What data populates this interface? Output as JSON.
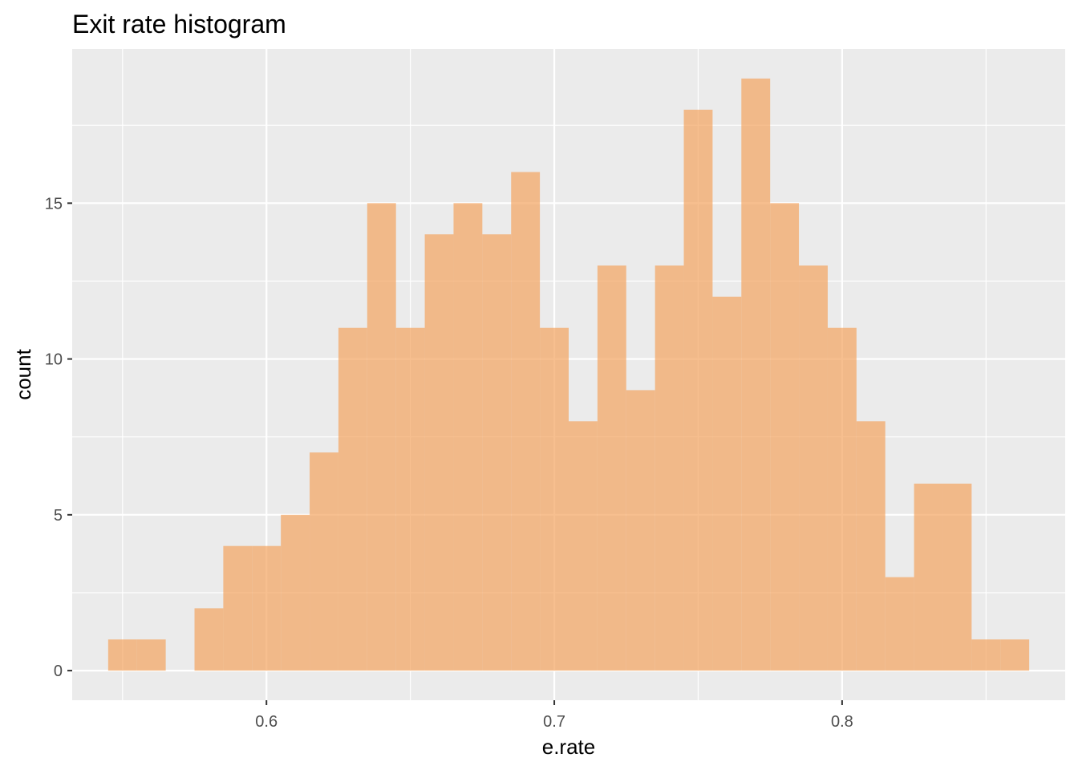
{
  "chart_data": {
    "type": "bar",
    "subtype": "histogram",
    "title": "Exit rate histogram",
    "xlabel": "e.rate",
    "ylabel": "count",
    "xlim": [
      0.5325,
      0.8775
    ],
    "ylim": [
      -0.95,
      19.95
    ],
    "x_ticks": [
      {
        "value": 0.6,
        "label": "0.6"
      },
      {
        "value": 0.7,
        "label": "0.7"
      },
      {
        "value": 0.8,
        "label": "0.8"
      }
    ],
    "x_minor_ticks": [
      0.55,
      0.65,
      0.75,
      0.85
    ],
    "y_ticks": [
      {
        "value": 0,
        "label": "0"
      },
      {
        "value": 5,
        "label": "5"
      },
      {
        "value": 10,
        "label": "10"
      },
      {
        "value": 15,
        "label": "15"
      }
    ],
    "y_minor_ticks": [
      2.5,
      7.5,
      12.5,
      17.5
    ],
    "bin_width": 0.01,
    "bins": [
      {
        "x": 0.55,
        "count": 1
      },
      {
        "x": 0.56,
        "count": 1
      },
      {
        "x": 0.57,
        "count": 0
      },
      {
        "x": 0.58,
        "count": 2
      },
      {
        "x": 0.59,
        "count": 4
      },
      {
        "x": 0.6,
        "count": 4
      },
      {
        "x": 0.61,
        "count": 5
      },
      {
        "x": 0.62,
        "count": 7
      },
      {
        "x": 0.63,
        "count": 11
      },
      {
        "x": 0.64,
        "count": 15
      },
      {
        "x": 0.65,
        "count": 11
      },
      {
        "x": 0.66,
        "count": 14
      },
      {
        "x": 0.67,
        "count": 15
      },
      {
        "x": 0.68,
        "count": 14
      },
      {
        "x": 0.69,
        "count": 16
      },
      {
        "x": 0.7,
        "count": 11
      },
      {
        "x": 0.71,
        "count": 8
      },
      {
        "x": 0.72,
        "count": 13
      },
      {
        "x": 0.73,
        "count": 9
      },
      {
        "x": 0.74,
        "count": 13
      },
      {
        "x": 0.75,
        "count": 18
      },
      {
        "x": 0.76,
        "count": 12
      },
      {
        "x": 0.77,
        "count": 19
      },
      {
        "x": 0.78,
        "count": 15
      },
      {
        "x": 0.79,
        "count": 13
      },
      {
        "x": 0.8,
        "count": 11
      },
      {
        "x": 0.81,
        "count": 8
      },
      {
        "x": 0.82,
        "count": 3
      },
      {
        "x": 0.83,
        "count": 6
      },
      {
        "x": 0.84,
        "count": 6
      },
      {
        "x": 0.85,
        "count": 1
      },
      {
        "x": 0.86,
        "count": 1
      }
    ],
    "grid": true,
    "legend": "none"
  },
  "colors": {
    "bar_fill": "#f4a460",
    "bar_opacity": 0.7,
    "panel_background": "#ebebeb",
    "gridline": "#ffffff",
    "tick_label": "#4d4d4d",
    "tick_mark": "#333333"
  }
}
